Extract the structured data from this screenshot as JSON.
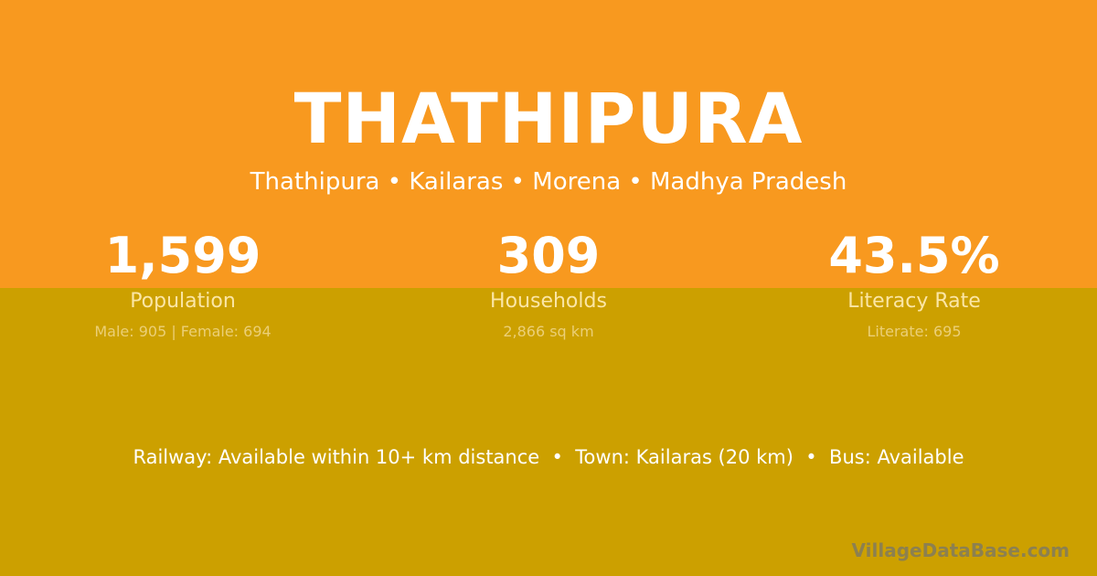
{
  "colors": {
    "top_bg": "#F8991F",
    "bottom_bg": "#CCA000",
    "text": "#FFFFFF"
  },
  "title": "THATHIPURA",
  "breadcrumb": "Thathipura • Kailaras • Morena • Madhya Pradesh",
  "stats": [
    {
      "value": "1,599",
      "label": "Population",
      "detail": "Male: 905 | Female: 694"
    },
    {
      "value": "309",
      "label": "Households",
      "detail": "2,866 sq km"
    },
    {
      "value": "43.5%",
      "label": "Literacy Rate",
      "detail": "Literate: 695"
    }
  ],
  "info": "Railway: Available within 10+ km distance  •  Town: Kailaras (20 km)  •  Bus: Available",
  "brand": "VillageDataBase.com"
}
